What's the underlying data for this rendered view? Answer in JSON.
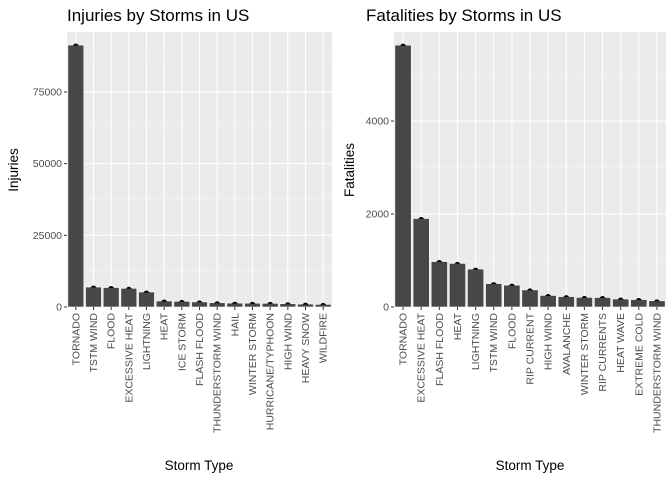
{
  "chart_data": [
    {
      "type": "bar",
      "title": "Injuries by Storms in US",
      "xlabel": "Storm Type",
      "ylabel": "Injuries",
      "categories": [
        "TORNADO",
        "TSTM WIND",
        "FLOOD",
        "EXCESSIVE HEAT",
        "LIGHTNING",
        "HEAT",
        "ICE STORM",
        "FLASH FLOOD",
        "THUNDERSTORM WIND",
        "HAIL",
        "WINTER STORM",
        "HURRICANE/TYPHOON",
        "HIGH WIND",
        "HEAVY SNOW",
        "WILDFIRE"
      ],
      "values": [
        91346,
        6957,
        6789,
        6525,
        5230,
        2100,
        1975,
        1777,
        1488,
        1361,
        1321,
        1275,
        1137,
        1021,
        911
      ],
      "yticks": [
        0,
        25000,
        50000,
        75000
      ],
      "ytick_labels": [
        "0",
        "25000",
        "50000",
        "75000"
      ],
      "ylim": [
        0,
        95900
      ],
      "grid": true
    },
    {
      "type": "bar",
      "title": "Fatalities by Storms in US",
      "xlabel": "Storm Type",
      "ylabel": "Fatalities",
      "categories": [
        "TORNADO",
        "EXCESSIVE HEAT",
        "FLASH FLOOD",
        "HEAT",
        "LIGHTNING",
        "TSTM WIND",
        "FLOOD",
        "RIP CURRENT",
        "HIGH WIND",
        "AVALANCHE",
        "WINTER STORM",
        "RIP CURRENTS",
        "HEAT WAVE",
        "EXTREME COLD",
        "THUNDERSTORM WIND"
      ],
      "values": [
        5633,
        1903,
        978,
        937,
        816,
        504,
        470,
        368,
        248,
        224,
        206,
        204,
        172,
        160,
        133
      ],
      "yticks": [
        0,
        2000,
        4000
      ],
      "ytick_labels": [
        "0",
        "2000",
        "4000"
      ],
      "ylim": [
        0,
        5915
      ],
      "grid": true
    }
  ]
}
